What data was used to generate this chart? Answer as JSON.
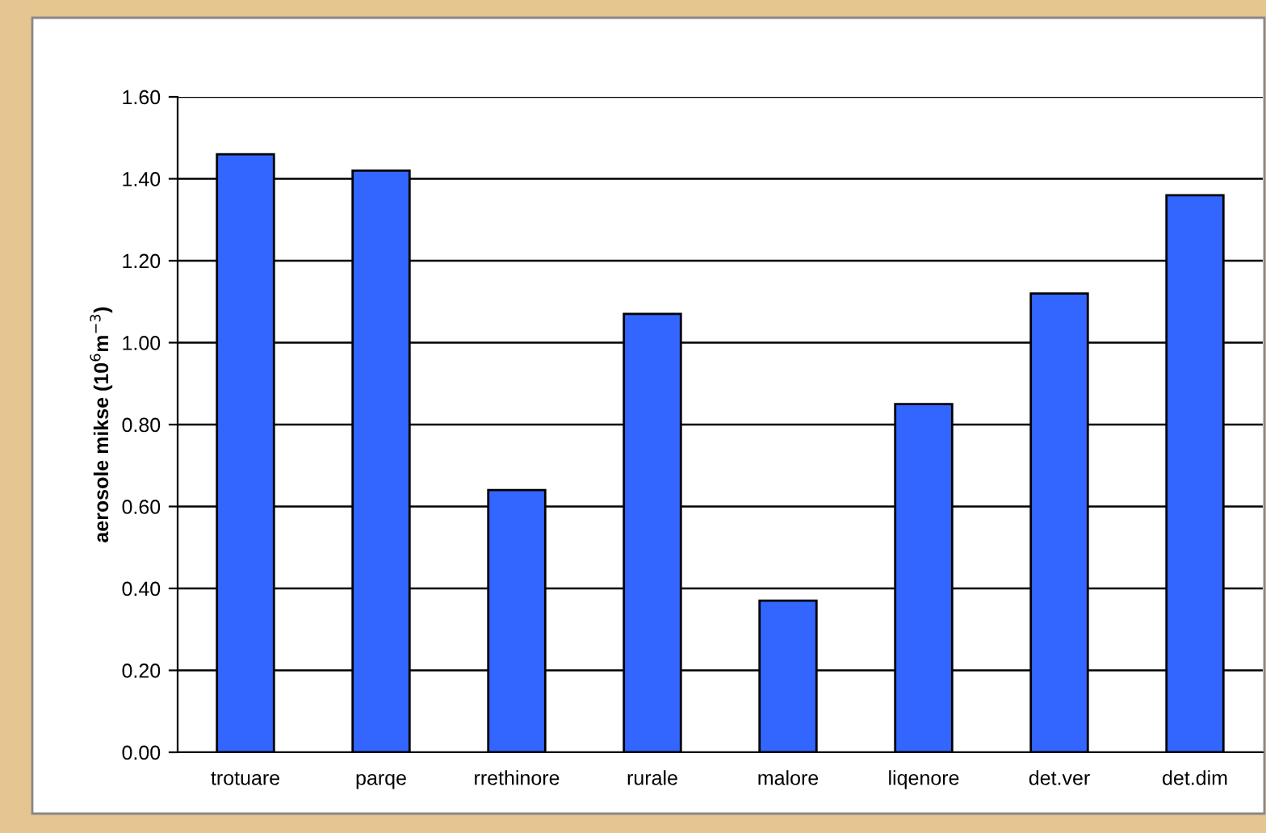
{
  "chart_data": {
    "type": "bar",
    "ylabel": "aerosole mikse (10$^{6}$m$^{−3}$)",
    "categories": [
      "trotuare",
      "parqe",
      "rrethinore",
      "rurale",
      "malore",
      "liqenore",
      "det.ver",
      "det.dim"
    ],
    "values": [
      1.46,
      1.42,
      0.64,
      1.07,
      0.37,
      0.85,
      1.12,
      1.36
    ],
    "color": "#3366ff",
    "ylim": [
      0,
      1.6
    ],
    "yticks": [
      {
        "value": 0,
        "label": "0.00"
      },
      {
        "value": 0.2,
        "label": "0.20"
      },
      {
        "value": 0.4,
        "label": "0.40"
      },
      {
        "value": 0.6,
        "label": "0.60"
      },
      {
        "value": 0.8,
        "label": "0.80"
      },
      {
        "value": 1.0,
        "label": "1.00"
      },
      {
        "value": 1.2,
        "label": "1.20"
      },
      {
        "value": 1.4,
        "label": "1.40"
      },
      {
        "value": 1.6,
        "label": "1.60"
      }
    ],
    "grid": "y"
  }
}
